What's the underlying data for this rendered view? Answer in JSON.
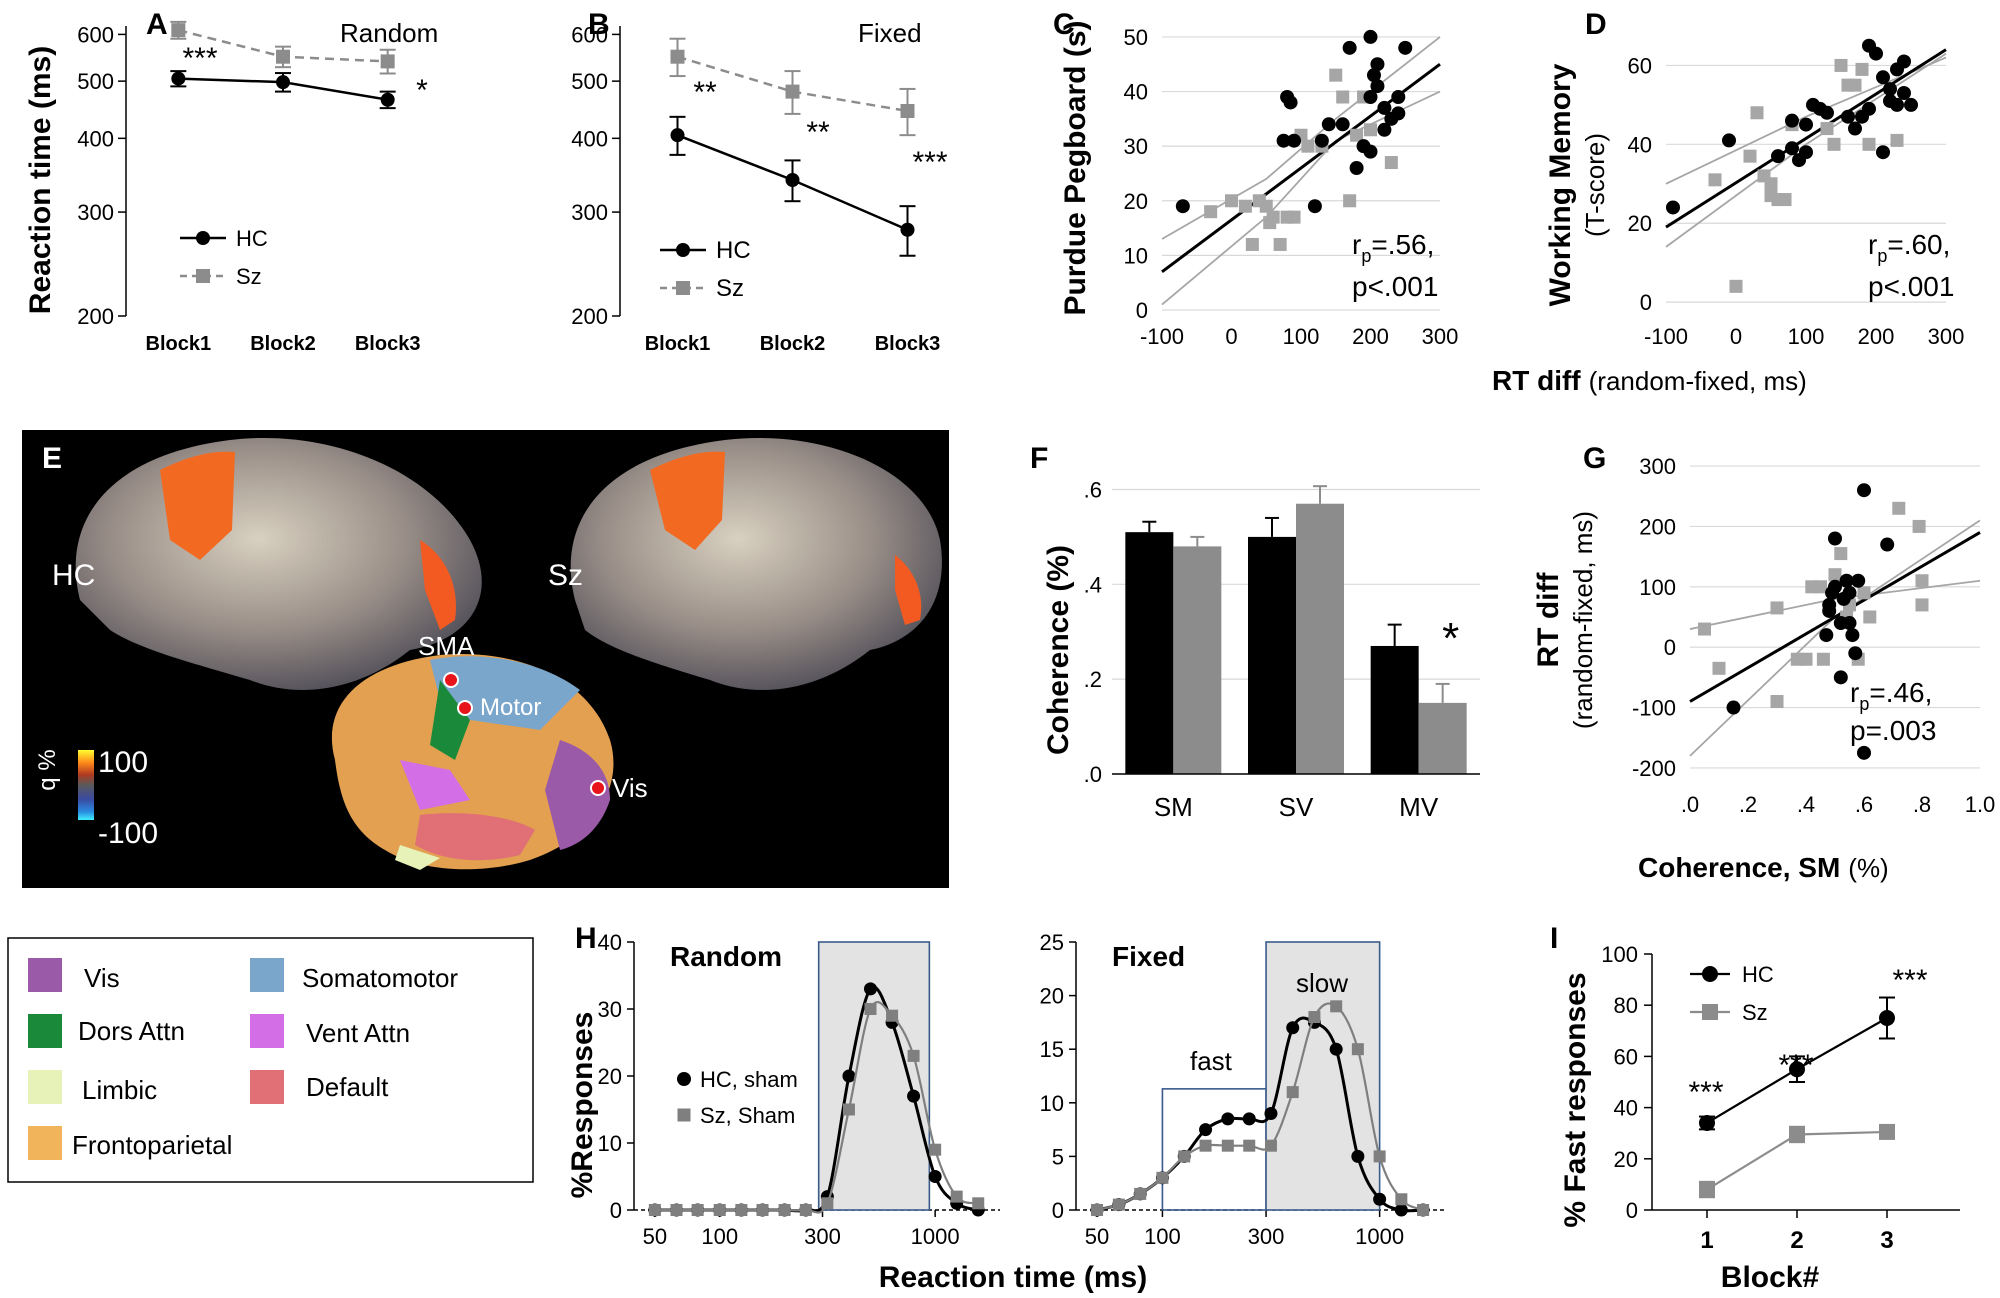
{
  "chart_data": [
    {
      "id": "A",
      "type": "line",
      "letter": "A",
      "title": "Random",
      "ylabel": "Reaction time (ms)",
      "yscale": "log",
      "ylim": [
        200,
        620
      ],
      "yticks": [
        "200",
        "300",
        "400",
        "500",
        "600"
      ],
      "categories": [
        "Block1",
        "Block2",
        "Block3"
      ],
      "series": [
        {
          "name": "HC",
          "values": [
            505,
            498,
            465
          ],
          "err": [
            15,
            18,
            15
          ],
          "color": "#000000"
        },
        {
          "name": "Sz",
          "values": [
            610,
            550,
            540
          ],
          "err": [
            20,
            22,
            25
          ],
          "color": "#8c8c8c"
        }
      ],
      "stars": [
        "***",
        "",
        "*"
      ],
      "legend": "bottom-left"
    },
    {
      "id": "B",
      "type": "line",
      "letter": "B",
      "title": "Fixed",
      "yscale": "log",
      "ylim": [
        200,
        620
      ],
      "yticks": [
        "200",
        "300",
        "400",
        "500",
        "600"
      ],
      "categories": [
        "Block1",
        "Block2",
        "Block3"
      ],
      "series": [
        {
          "name": "HC",
          "values": [
            405,
            340,
            280
          ],
          "err": [
            30,
            27,
            27
          ],
          "color": "#000000"
        },
        {
          "name": "Sz",
          "values": [
            550,
            480,
            445
          ],
          "err": [
            40,
            40,
            40
          ],
          "color": "#8c8c8c"
        }
      ],
      "stars": [
        "**",
        "**",
        "***"
      ],
      "legend": "bottom-left"
    },
    {
      "id": "C",
      "type": "scatter",
      "letter": "C",
      "ylabel": "Purdue Pegboard (s)",
      "xlim": [
        -100,
        300
      ],
      "ylim": [
        0,
        52
      ],
      "xticks": [
        "-100",
        "0",
        "100",
        "200",
        "300"
      ],
      "yticks": [
        "0",
        "10",
        "20",
        "30",
        "40",
        "50"
      ],
      "stat_r": "r",
      "stat_sub": "p",
      "stat_rval": "=.56,",
      "stat_p": "p<.001",
      "hc": [
        [
          -70,
          19
        ],
        [
          80,
          39
        ],
        [
          85,
          38
        ],
        [
          75,
          31
        ],
        [
          90,
          31
        ],
        [
          120,
          19
        ],
        [
          130,
          31
        ],
        [
          140,
          34
        ],
        [
          160,
          34
        ],
        [
          170,
          48
        ],
        [
          180,
          26
        ],
        [
          190,
          30
        ],
        [
          200,
          39
        ],
        [
          205,
          43
        ],
        [
          200,
          50
        ],
        [
          210,
          41
        ],
        [
          210,
          45
        ],
        [
          220,
          33
        ],
        [
          220,
          37
        ],
        [
          230,
          35
        ],
        [
          240,
          36
        ],
        [
          250,
          48
        ],
        [
          200,
          29
        ],
        [
          240,
          39
        ]
      ],
      "sz": [
        [
          -30,
          18
        ],
        [
          0,
          20
        ],
        [
          20,
          19
        ],
        [
          30,
          12
        ],
        [
          40,
          20
        ],
        [
          50,
          19
        ],
        [
          55,
          16
        ],
        [
          60,
          17
        ],
        [
          70,
          12
        ],
        [
          80,
          17
        ],
        [
          90,
          17
        ],
        [
          100,
          32
        ],
        [
          110,
          30
        ],
        [
          130,
          30
        ],
        [
          150,
          43
        ],
        [
          160,
          39
        ],
        [
          170,
          20
        ],
        [
          180,
          32
        ],
        [
          190,
          39
        ],
        [
          200,
          33
        ],
        [
          230,
          27
        ]
      ],
      "fit": [
        [
          -100,
          7
        ],
        [
          300,
          45
        ]
      ],
      "ci_upper": [
        [
          -100,
          13
        ],
        [
          50,
          24
        ],
        [
          150,
          35
        ],
        [
          300,
          50
        ]
      ],
      "ci_lower": [
        [
          -100,
          1
        ],
        [
          50,
          17
        ],
        [
          150,
          31
        ],
        [
          300,
          40
        ]
      ]
    },
    {
      "id": "D",
      "type": "scatter",
      "letter": "D",
      "ylabel": "Working Memory",
      "ylabel2": "(T-score)",
      "xlim": [
        -100,
        300
      ],
      "ylim": [
        -2,
        70
      ],
      "xticks": [
        "-100",
        "0",
        "100",
        "200",
        "300"
      ],
      "yticks": [
        "0",
        "20",
        "40",
        "60"
      ],
      "xlabel": "RT diff",
      "xlabel2": "(random-fixed, ms)",
      "stat_r": "r",
      "stat_sub": "p",
      "stat_rval": "=.60,",
      "stat_p": "p<.001",
      "hc": [
        [
          -90,
          24
        ],
        [
          -10,
          41
        ],
        [
          60,
          37
        ],
        [
          80,
          46
        ],
        [
          80,
          39
        ],
        [
          90,
          36
        ],
        [
          100,
          38
        ],
        [
          100,
          45
        ],
        [
          110,
          50
        ],
        [
          120,
          49
        ],
        [
          130,
          48
        ],
        [
          160,
          47
        ],
        [
          170,
          44
        ],
        [
          180,
          47
        ],
        [
          190,
          49
        ],
        [
          190,
          65
        ],
        [
          200,
          63
        ],
        [
          210,
          57
        ],
        [
          210,
          38
        ],
        [
          220,
          51
        ],
        [
          220,
          54
        ],
        [
          230,
          59
        ],
        [
          230,
          50
        ],
        [
          240,
          61
        ],
        [
          240,
          53
        ],
        [
          250,
          50
        ]
      ],
      "sz": [
        [
          -30,
          31
        ],
        [
          0,
          4
        ],
        [
          20,
          37
        ],
        [
          30,
          48
        ],
        [
          40,
          32
        ],
        [
          50,
          30
        ],
        [
          50,
          27
        ],
        [
          60,
          26
        ],
        [
          70,
          26
        ],
        [
          80,
          45
        ],
        [
          130,
          44
        ],
        [
          140,
          40
        ],
        [
          150,
          60
        ],
        [
          160,
          55
        ],
        [
          170,
          55
        ],
        [
          180,
          59
        ],
        [
          190,
          40
        ],
        [
          230,
          41
        ]
      ],
      "fit": [
        [
          -100,
          19
        ],
        [
          300,
          64
        ]
      ],
      "ci_upper": [
        [
          -100,
          30
        ],
        [
          100,
          47
        ],
        [
          300,
          62
        ]
      ],
      "ci_lower": [
        [
          -100,
          14
        ],
        [
          100,
          40
        ],
        [
          300,
          63
        ]
      ]
    },
    {
      "id": "F",
      "type": "bar",
      "letter": "F",
      "ylabel": "Coherence (%)",
      "ylim": [
        0,
        0.62
      ],
      "yticks": [
        ".0",
        ".2",
        ".4",
        ".6"
      ],
      "categories": [
        "SM",
        "SV",
        "MV"
      ],
      "series": [
        {
          "name": "HC",
          "values": [
            0.51,
            0.5,
            0.27
          ],
          "err": [
            0.022,
            0.04,
            0.045
          ],
          "color": "#000000"
        },
        {
          "name": "Sz",
          "values": [
            0.48,
            0.57,
            0.15
          ],
          "err": [
            0.02,
            0.037,
            0.04
          ],
          "color": "#8c8c8c"
        }
      ],
      "stars": [
        "",
        "",
        "*"
      ]
    },
    {
      "id": "G",
      "type": "scatter",
      "letter": "G",
      "ylabel": "RT diff",
      "ylabel2": "(random-fixed, ms)",
      "xlabel": "Coherence, SM",
      "xlabel2": "(%)",
      "xlim": [
        0,
        1.0
      ],
      "ylim": [
        -220,
        310
      ],
      "xticks": [
        ".0",
        ".2",
        ".4",
        ".6",
        ".8",
        "1.0"
      ],
      "yticks": [
        "-200",
        "-100",
        "0",
        "100",
        "200",
        "300"
      ],
      "stat_r": "r",
      "stat_sub": "p",
      "stat_rval": "=.46,",
      "stat_p": "p=.003",
      "hc": [
        [
          0.15,
          -100
        ],
        [
          0.47,
          20
        ],
        [
          0.48,
          60
        ],
        [
          0.48,
          70
        ],
        [
          0.49,
          90
        ],
        [
          0.5,
          100
        ],
        [
          0.5,
          180
        ],
        [
          0.52,
          -50
        ],
        [
          0.52,
          40
        ],
        [
          0.53,
          80
        ],
        [
          0.54,
          110
        ],
        [
          0.55,
          40
        ],
        [
          0.55,
          90
        ],
        [
          0.56,
          20
        ],
        [
          0.57,
          -10
        ],
        [
          0.58,
          110
        ],
        [
          0.6,
          260
        ],
        [
          0.6,
          -175
        ],
        [
          0.68,
          170
        ]
      ],
      "sz": [
        [
          0.05,
          30
        ],
        [
          0.1,
          -35
        ],
        [
          0.3,
          -90
        ],
        [
          0.3,
          65
        ],
        [
          0.37,
          -20
        ],
        [
          0.4,
          -20
        ],
        [
          0.42,
          100
        ],
        [
          0.45,
          100
        ],
        [
          0.46,
          -20
        ],
        [
          0.5,
          120
        ],
        [
          0.52,
          155
        ],
        [
          0.54,
          50
        ],
        [
          0.55,
          70
        ],
        [
          0.58,
          -20
        ],
        [
          0.6,
          90
        ],
        [
          0.62,
          50
        ],
        [
          0.72,
          230
        ],
        [
          0.79,
          200
        ],
        [
          0.8,
          110
        ],
        [
          0.8,
          70
        ]
      ],
      "fit": [
        [
          0,
          -90
        ],
        [
          1.0,
          190
        ]
      ],
      "ci_upper": [
        [
          0,
          30
        ],
        [
          0.5,
          80
        ],
        [
          1.0,
          110
        ]
      ],
      "ci_lower": [
        [
          0,
          -180
        ],
        [
          0.5,
          50
        ],
        [
          1.0,
          210
        ]
      ]
    },
    {
      "id": "H1",
      "type": "line",
      "letter": "H",
      "title": "Random",
      "ylabel": "%Responses",
      "xscale": "log",
      "xlim": [
        40,
        2000
      ],
      "ylim": [
        0,
        40
      ],
      "xticks": [
        "50",
        "100",
        "300",
        "1000"
      ],
      "yticks": [
        "0",
        "10",
        "20",
        "30",
        "40"
      ],
      "series": [
        {
          "name": "HC, sham",
          "x": [
            50,
            63,
            79,
            100,
            126,
            158,
            200,
            251,
            316,
            398,
            501,
            631,
            794,
            1000,
            1259,
            1585
          ],
          "values": [
            0,
            0,
            0,
            0,
            0,
            0,
            0,
            0,
            2,
            20,
            33,
            28,
            17,
            5,
            1,
            0
          ],
          "color": "#000000"
        },
        {
          "name": "Sz, Sham",
          "x": [
            50,
            63,
            79,
            100,
            126,
            158,
            200,
            251,
            316,
            398,
            501,
            631,
            794,
            1000,
            1259,
            1585
          ],
          "values": [
            0,
            0,
            0,
            0,
            0,
            0,
            0,
            0,
            1,
            15,
            30,
            29,
            23,
            9,
            2,
            1
          ],
          "color": "#7f7f7f"
        }
      ]
    },
    {
      "id": "H2",
      "type": "line",
      "title": "Fixed",
      "xlabel": "Reaction time (ms)",
      "xscale": "log",
      "xlim": [
        40,
        2000
      ],
      "ylim": [
        0,
        25
      ],
      "xticks": [
        "50",
        "100",
        "300",
        "1000"
      ],
      "yticks": [
        "0",
        "5",
        "10",
        "15",
        "20",
        "25"
      ],
      "annotations": [
        "fast",
        "slow"
      ],
      "series": [
        {
          "name": "HC, sham",
          "x": [
            50,
            63,
            79,
            100,
            126,
            158,
            200,
            251,
            316,
            398,
            501,
            631,
            794,
            1000,
            1259,
            1585
          ],
          "values": [
            0,
            0.5,
            1.5,
            3,
            5,
            7.5,
            8.5,
            8.5,
            9,
            17,
            17.5,
            15,
            5,
            1,
            0,
            0
          ],
          "color": "#000000"
        },
        {
          "name": "Sz, Sham",
          "x": [
            50,
            63,
            79,
            100,
            126,
            158,
            200,
            251,
            316,
            398,
            501,
            631,
            794,
            1000,
            1259,
            1585
          ],
          "values": [
            0,
            0.5,
            1.5,
            3,
            5,
            6,
            6,
            6,
            6,
            11,
            18,
            19,
            15,
            5,
            1,
            0
          ],
          "color": "#7f7f7f"
        }
      ]
    },
    {
      "id": "I",
      "type": "line",
      "letter": "I",
      "ylabel": "% Fast responses",
      "xlabel": "Block#",
      "ylim": [
        0,
        100
      ],
      "yticks": [
        "0",
        "20",
        "40",
        "60",
        "80",
        "100"
      ],
      "categories": [
        "1",
        "2",
        "3"
      ],
      "series": [
        {
          "name": "HC",
          "values": [
            34,
            55,
            75
          ],
          "err": [
            2.5,
            5,
            8
          ],
          "color": "#000000"
        },
        {
          "name": "Sz",
          "values": [
            8,
            29.5,
            30.5
          ],
          "err": [
            3,
            3,
            2
          ],
          "color": "#8c8c8c"
        }
      ],
      "stars": [
        "***",
        "***",
        "***"
      ]
    }
  ],
  "brain": {
    "letter": "E",
    "hc_label": "HC",
    "sz_label": "Sz",
    "nodes": [
      "SMA",
      "Motor",
      "Vis"
    ],
    "scale_label": "q %",
    "scale_max": "100",
    "scale_min": "-100"
  },
  "network_legend": [
    {
      "label": "Vis",
      "color": "#9a5aa8"
    },
    {
      "label": "Somatomotor",
      "color": "#7aa6cc"
    },
    {
      "label": "Dors Attn",
      "color": "#1a8a3a"
    },
    {
      "label": "Vent Attn",
      "color": "#d46ee6"
    },
    {
      "label": "Limbic",
      "color": "#e6f2b8"
    },
    {
      "label": "Default",
      "color": "#e07076"
    },
    {
      "label": "Frontoparietal",
      "color": "#f2b45a"
    }
  ]
}
